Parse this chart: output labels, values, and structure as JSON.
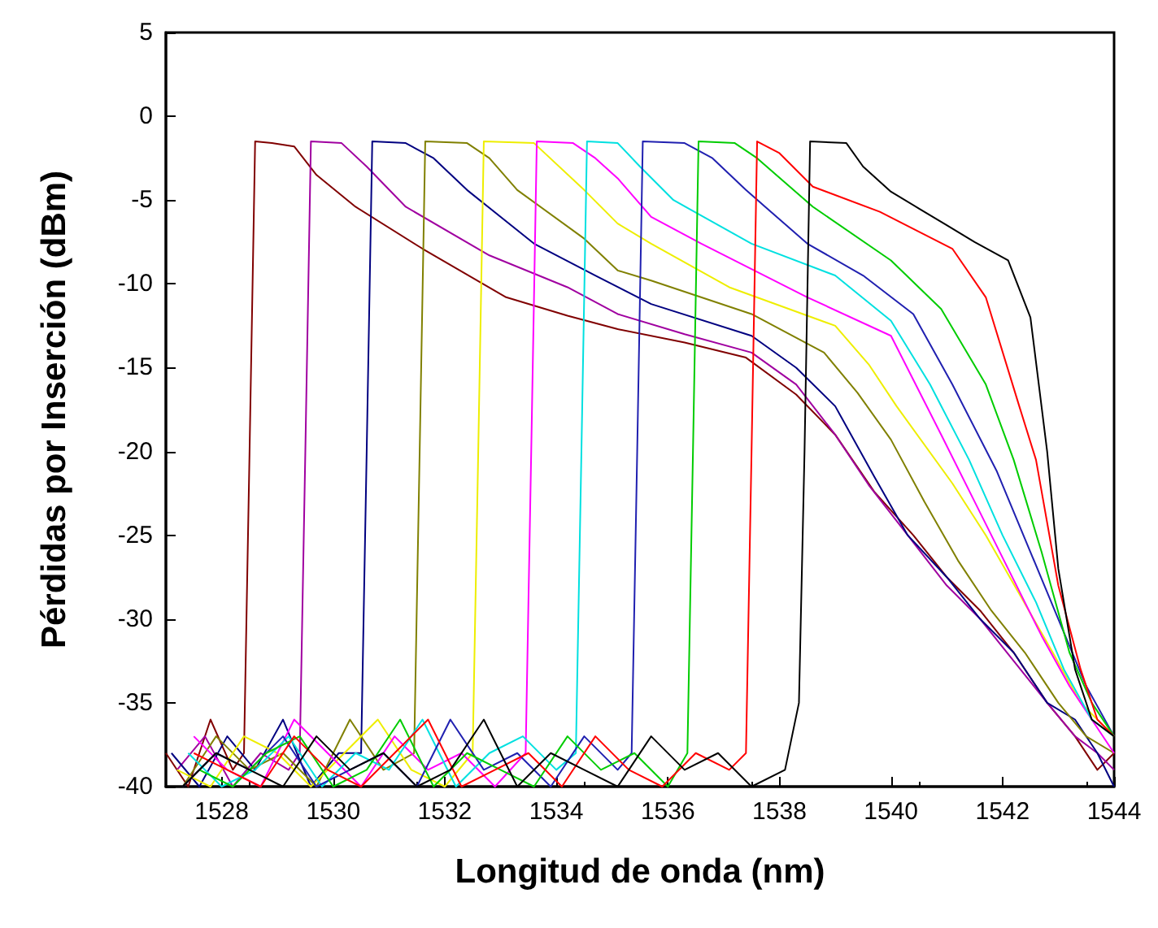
{
  "chart_data": {
    "type": "line",
    "xlabel": "Longitud de onda (nm)",
    "ylabel": "Pérdidas por Inserción (dBm)",
    "xlim": [
      1527,
      1544
    ],
    "xticks": [
      1528,
      1530,
      1532,
      1534,
      1536,
      1538,
      1540,
      1542,
      1544
    ],
    "ylim": [
      -40,
      5
    ],
    "yticks": [
      -40,
      -35,
      -30,
      -25,
      -20,
      -15,
      -10,
      -5,
      0,
      5
    ],
    "marker": "none",
    "line_style": "solid",
    "series": [
      {
        "color": "#800000",
        "x": [
          1527,
          1527.4,
          1527.8,
          1528.2,
          1528.4,
          1528.5,
          1528.6,
          1528.9,
          1529.3,
          1529.7,
          1530.4,
          1531.6,
          1533.1,
          1534.2,
          1535.1,
          1536.3,
          1537.4,
          1538.3,
          1539,
          1539.7,
          1540.4,
          1541,
          1541.6,
          1542.2,
          1542.8,
          1543.3,
          1543.7,
          1544
        ],
        "values": [
          -38,
          -40,
          -36,
          -39,
          -38,
          -20,
          -1.5,
          -1.6,
          -1.8,
          -3.5,
          -5.4,
          -7.9,
          -10.8,
          -11.9,
          -12.7,
          -13.5,
          -14.4,
          -16.6,
          -19,
          -22.4,
          -25,
          -27.5,
          -29.5,
          -32,
          -35,
          -37,
          -39,
          -38
        ]
      },
      {
        "color": "#a000a0",
        "x": [
          1527.2,
          1527.7,
          1528.2,
          1528.7,
          1529.2,
          1529.4,
          1529.5,
          1529.6,
          1530.15,
          1530.6,
          1531.3,
          1532.8,
          1534.2,
          1535.1,
          1536.3,
          1537.5,
          1538.3,
          1539,
          1539.6,
          1540.3,
          1541,
          1541.6,
          1542.2,
          1542.8,
          1543.3,
          1543.7,
          1544
        ],
        "values": [
          -39,
          -37,
          -40,
          -38,
          -39,
          -38,
          -20,
          -1.5,
          -1.6,
          -3,
          -5.4,
          -8.3,
          -10.2,
          -11.8,
          -13,
          -14.1,
          -16,
          -19,
          -22,
          -25,
          -28,
          -30,
          -32.5,
          -35,
          -37,
          -38,
          -39
        ]
      },
      {
        "color": "#000080",
        "x": [
          1527.1,
          1527.6,
          1528.1,
          1528.6,
          1529.1,
          1529.6,
          1530.1,
          1530.5,
          1530.6,
          1530.7,
          1531.3,
          1531.8,
          1532.4,
          1533.6,
          1534.7,
          1535.7,
          1537.5,
          1538.3,
          1539,
          1539.7,
          1540.3,
          1541,
          1541.6,
          1542.2,
          1542.8,
          1543.3,
          1543.7,
          1544
        ],
        "values": [
          -38,
          -40,
          -37,
          -39,
          -36,
          -40,
          -38,
          -38,
          -20,
          -1.5,
          -1.6,
          -2.5,
          -4.4,
          -7.6,
          -9.5,
          -11.2,
          -13.1,
          -15,
          -17.3,
          -21.5,
          -25,
          -27.5,
          -30,
          -32,
          -35,
          -36,
          -38,
          -40
        ]
      },
      {
        "color": "#808000",
        "x": [
          1527.3,
          1527.9,
          1528.5,
          1529.1,
          1529.7,
          1530.3,
          1530.9,
          1531.45,
          1531.55,
          1531.65,
          1532.4,
          1532.8,
          1533.3,
          1534.5,
          1535.1,
          1535.7,
          1537.5,
          1538.8,
          1539.4,
          1540,
          1540.6,
          1541.2,
          1541.8,
          1542.4,
          1543,
          1543.5,
          1544
        ],
        "values": [
          -40,
          -37,
          -39,
          -38,
          -40,
          -36,
          -39,
          -38,
          -20,
          -1.5,
          -1.6,
          -2.5,
          -4.4,
          -7.3,
          -9.2,
          -9.8,
          -11.8,
          -14.1,
          -16.5,
          -19.3,
          -23,
          -26.5,
          -29.5,
          -32,
          -35,
          -37,
          -38
        ]
      },
      {
        "color": "#eeee00",
        "x": [
          1527.2,
          1527.8,
          1528.4,
          1529,
          1529.6,
          1530.2,
          1530.8,
          1531.4,
          1532,
          1532.5,
          1532.6,
          1532.7,
          1533.6,
          1534.5,
          1535.1,
          1535.7,
          1537.1,
          1539,
          1539.6,
          1540.1,
          1541.1,
          1541.7,
          1542.3,
          1542.9,
          1543.4,
          1544
        ],
        "values": [
          -39,
          -40,
          -37,
          -38,
          -40,
          -38,
          -36,
          -39,
          -40,
          -38,
          -20,
          -1.5,
          -1.6,
          -4.4,
          -6.4,
          -7.6,
          -10.2,
          -12.5,
          -14.8,
          -17.3,
          -21.9,
          -25,
          -28.5,
          -32,
          -35,
          -37
        ]
      },
      {
        "color": "#ff00ff",
        "x": [
          1527.5,
          1528.1,
          1528.7,
          1529.3,
          1529.9,
          1530.5,
          1531.1,
          1531.7,
          1532.3,
          1532.9,
          1533.45,
          1533.55,
          1533.65,
          1534.3,
          1534.7,
          1535.1,
          1535.7,
          1536.6,
          1538.5,
          1540,
          1540.9,
          1541.5,
          1542.1,
          1542.7,
          1543.2,
          1543.6,
          1544
        ],
        "values": [
          -37,
          -39,
          -40,
          -36,
          -38,
          -40,
          -37,
          -39,
          -38,
          -40,
          -38,
          -20,
          -1.5,
          -1.6,
          -2.5,
          -3.7,
          -6,
          -7.6,
          -10.8,
          -13.1,
          -19,
          -23,
          -27,
          -31,
          -34,
          -36,
          -38
        ]
      },
      {
        "color": "#00e0e0",
        "x": [
          1527.4,
          1528,
          1528.6,
          1529.2,
          1529.8,
          1530.4,
          1531,
          1531.6,
          1532.2,
          1532.8,
          1533.4,
          1534,
          1534.35,
          1534.45,
          1534.55,
          1535.1,
          1535.5,
          1536.1,
          1537.5,
          1539,
          1540,
          1540.7,
          1541.4,
          1542,
          1542.6,
          1543.1,
          1543.6,
          1544
        ],
        "values": [
          -38,
          -40,
          -39,
          -37,
          -40,
          -38,
          -39,
          -36,
          -40,
          -38,
          -37,
          -39,
          -38,
          -20,
          -1.5,
          -1.6,
          -3,
          -5,
          -7.6,
          -9.5,
          -12.2,
          -16,
          -20.5,
          -25,
          -29,
          -33,
          -36,
          -37
        ]
      },
      {
        "color": "#2020b0",
        "x": [
          1527.3,
          1527.9,
          1528.5,
          1529.1,
          1529.7,
          1530.3,
          1530.9,
          1531.5,
          1532.1,
          1532.7,
          1533.3,
          1533.9,
          1534.5,
          1535.1,
          1535.35,
          1535.45,
          1535.55,
          1536.3,
          1536.8,
          1537.4,
          1538.5,
          1539.5,
          1540.4,
          1541.1,
          1541.9,
          1542.5,
          1543,
          1543.5,
          1544
        ],
        "values": [
          -40,
          -38,
          -39,
          -37,
          -40,
          -39,
          -38,
          -40,
          -36,
          -39,
          -38,
          -40,
          -37,
          -39,
          -38,
          -20,
          -1.5,
          -1.6,
          -2.5,
          -4.4,
          -7.6,
          -9.5,
          -11.8,
          -16,
          -21.2,
          -26,
          -30,
          -34,
          -37
        ]
      },
      {
        "color": "#00cc00",
        "x": [
          1527.6,
          1528.2,
          1528.8,
          1529.4,
          1530,
          1530.6,
          1531.2,
          1531.8,
          1532.4,
          1533,
          1533.6,
          1534.2,
          1534.8,
          1535.4,
          1536,
          1536.35,
          1536.45,
          1536.55,
          1537.2,
          1537.6,
          1538.6,
          1540,
          1540.9,
          1541.7,
          1542.2,
          1542.7,
          1543.2,
          1543.6,
          1544
        ],
        "values": [
          -39,
          -40,
          -38,
          -37,
          -40,
          -39,
          -36,
          -40,
          -38,
          -39,
          -40,
          -37,
          -39,
          -38,
          -40,
          -38,
          -20,
          -1.5,
          -1.6,
          -2.5,
          -5.4,
          -8.6,
          -11.5,
          -16,
          -20.5,
          -26,
          -32,
          -35,
          -37
        ]
      },
      {
        "color": "#ff0000",
        "x": [
          1527.5,
          1528.1,
          1528.7,
          1529.3,
          1529.9,
          1530.5,
          1531.1,
          1531.7,
          1532.3,
          1532.9,
          1533.5,
          1534.1,
          1534.7,
          1535.3,
          1535.9,
          1536.5,
          1537.1,
          1537.4,
          1537.5,
          1537.6,
          1538,
          1538.6,
          1539.8,
          1541.1,
          1541.7,
          1542.3,
          1542.6,
          1543,
          1543.4,
          1543.7,
          1544
        ],
        "values": [
          -38,
          -39,
          -40,
          -37,
          -39,
          -40,
          -38,
          -36,
          -40,
          -39,
          -38,
          -40,
          -37,
          -39,
          -40,
          -38,
          -39,
          -38,
          -20,
          -1.5,
          -2.2,
          -4.2,
          -5.7,
          -7.9,
          -10.8,
          -17.3,
          -20.5,
          -28,
          -33,
          -36,
          -37
        ]
      },
      {
        "color": "#000000",
        "x": [
          1527.3,
          1527.9,
          1528.5,
          1529.1,
          1529.7,
          1530.3,
          1530.9,
          1531.5,
          1532.1,
          1532.7,
          1533.3,
          1533.9,
          1534.5,
          1535.1,
          1535.7,
          1536.3,
          1536.9,
          1537.5,
          1538.1,
          1538.35,
          1538.45,
          1538.55,
          1539.2,
          1539.5,
          1540,
          1540.5,
          1541,
          1541.5,
          1542.1,
          1542.5,
          1542.8,
          1543,
          1543.3,
          1543.6,
          1544
        ],
        "values": [
          -40,
          -38,
          -39,
          -40,
          -37,
          -39,
          -38,
          -40,
          -39,
          -36,
          -40,
          -38,
          -39,
          -40,
          -37,
          -39,
          -38,
          -40,
          -39,
          -35,
          -20,
          -1.5,
          -1.6,
          -3,
          -4.5,
          -5.5,
          -6.5,
          -7.5,
          -8.6,
          -12,
          -20,
          -27,
          -33,
          -36,
          -37
        ]
      }
    ]
  }
}
